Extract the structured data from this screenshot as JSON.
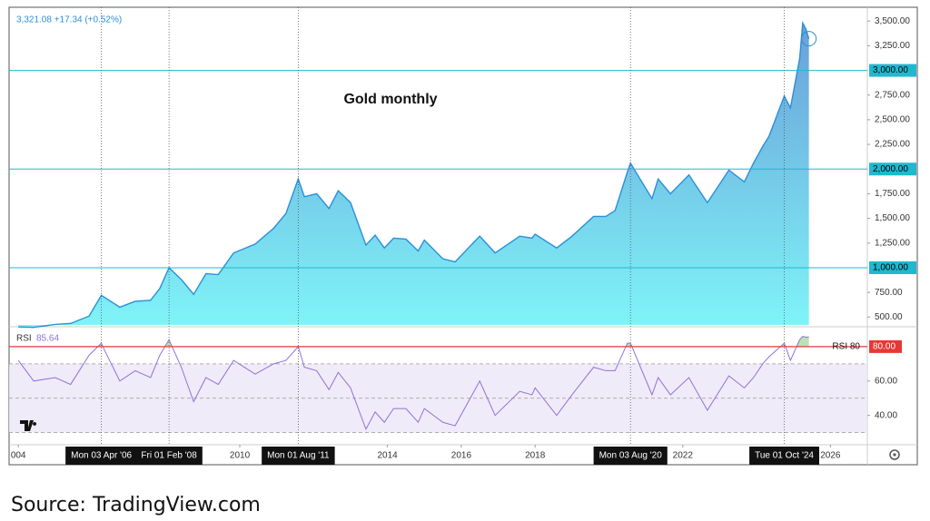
{
  "chart_data": {
    "type": "area",
    "title": "Gold monthly",
    "header": "3,321.08 +17.34 (+0.52%)",
    "color": "#2b8fd8",
    "x": [
      "2004-01",
      "2004-06",
      "2005-01",
      "2005-06",
      "2005-12",
      "2006-04",
      "2006-05",
      "2006-10",
      "2007-03",
      "2007-08",
      "2007-11",
      "2008-02",
      "2008-06",
      "2008-10",
      "2009-02",
      "2009-06",
      "2009-11",
      "2010-06",
      "2010-12",
      "2011-04",
      "2011-08",
      "2011-10",
      "2012-02",
      "2012-06",
      "2012-09",
      "2013-01",
      "2013-06",
      "2013-09",
      "2013-12",
      "2014-03",
      "2014-07",
      "2014-11",
      "2015-01",
      "2015-07",
      "2015-11",
      "2016-07",
      "2016-12",
      "2017-08",
      "2017-12",
      "2018-01",
      "2018-08",
      "2019-01",
      "2019-08",
      "2019-12",
      "2020-03",
      "2020-07",
      "2020-08",
      "2021-03",
      "2021-05",
      "2021-09",
      "2022-03",
      "2022-09",
      "2023-04",
      "2023-09",
      "2023-12",
      "2024-03",
      "2024-05",
      "2024-10",
      "2024-12",
      "2025-03",
      "2025-04",
      "2025-05",
      "2025-06"
    ],
    "values": [
      400,
      395,
      425,
      435,
      510,
      720,
      700,
      600,
      660,
      670,
      790,
      1000,
      880,
      730,
      940,
      930,
      1150,
      1240,
      1400,
      1550,
      1900,
      1720,
      1750,
      1600,
      1780,
      1660,
      1230,
      1330,
      1200,
      1300,
      1290,
      1170,
      1280,
      1090,
      1060,
      1320,
      1150,
      1320,
      1300,
      1340,
      1200,
      1320,
      1520,
      1520,
      1580,
      1970,
      2060,
      1700,
      1900,
      1750,
      1940,
      1660,
      1990,
      1870,
      2060,
      2230,
      2330,
      2740,
      2620,
      3120,
      3480,
      3420,
      3321.08
    ],
    "xlim": [
      "2003-10",
      "2027-01"
    ],
    "xticks": [
      {
        "value": 2004,
        "label": "004"
      },
      2010,
      2014,
      2016,
      2018,
      2022,
      2026
    ],
    "ylim": [
      420,
      3640
    ],
    "yticks": [
      {
        "value": 500,
        "label": "500.00"
      },
      {
        "value": 750,
        "label": "750.00"
      },
      {
        "value": 1250,
        "label": "1,250.00"
      },
      {
        "value": 1500,
        "label": "1,500.00"
      },
      {
        "value": 1750,
        "label": "1,750.00"
      },
      {
        "value": 2250,
        "label": "2,250.00"
      },
      {
        "value": 2500,
        "label": "2,500.00"
      },
      {
        "value": 2750,
        "label": "2,750.00"
      },
      {
        "value": 3250,
        "label": "3,250.00"
      },
      {
        "value": 3500,
        "label": "3,500.00"
      }
    ],
    "hlines": [
      {
        "value": 1000,
        "label": "1,000.00"
      },
      {
        "value": 2000,
        "label": "2,000.00"
      },
      {
        "value": 3000,
        "label": "3,000.00"
      }
    ],
    "crosshairs": [
      {
        "x": "2006-04",
        "label": "Mon 03 Apr '06"
      },
      {
        "x": "2008-02",
        "label": "Fri 01 Feb '08"
      },
      {
        "x": "2011-08",
        "label": "Mon 01 Aug '11"
      },
      {
        "x": "2020-08",
        "label": "Mon 03 Aug '20"
      },
      {
        "x": "2024-10",
        "label": "Tue 01 Oct '24"
      }
    ],
    "rsi": {
      "label": "RSI",
      "last_label": "85.64",
      "color": "#8e72d6",
      "values": [
        72,
        60,
        62,
        58,
        75,
        82,
        78,
        60,
        66,
        62,
        75,
        84,
        68,
        48,
        62,
        58,
        72,
        64,
        70,
        72,
        80,
        68,
        66,
        55,
        65,
        56,
        32,
        42,
        36,
        44,
        44,
        36,
        44,
        36,
        34,
        60,
        40,
        54,
        52,
        56,
        40,
        52,
        68,
        66,
        66,
        82,
        82,
        52,
        62,
        52,
        62,
        43,
        63,
        56,
        62,
        70,
        74,
        82,
        72,
        84,
        86,
        85.5,
        85.64
      ],
      "ylim": [
        24,
        90.5
      ],
      "yticks": [
        {
          "value": 40,
          "label": "40.00"
        },
        {
          "value": 60,
          "label": "60.00"
        }
      ],
      "levels": [
        30,
        50,
        70
      ],
      "line": {
        "value": 80,
        "label": "80.00",
        "name": "RSI 80"
      }
    },
    "source": "Source: TradingView.com"
  }
}
